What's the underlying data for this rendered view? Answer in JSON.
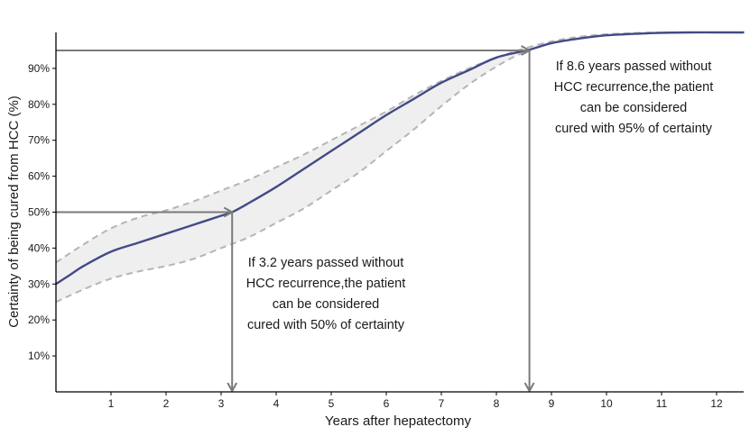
{
  "chart_data": {
    "type": "line",
    "xlabel": "Years after hepatectomy",
    "ylabel": "Certainty of being cured from HCC (%)",
    "xlim": [
      0,
      12.5
    ],
    "ylim": [
      0,
      100
    ],
    "x_ticks": [
      1,
      2,
      3,
      4,
      5,
      6,
      7,
      8,
      9,
      10,
      11,
      12
    ],
    "y_ticks": [
      10,
      20,
      30,
      40,
      50,
      60,
      70,
      80,
      90
    ],
    "y_tick_labels": [
      "10%",
      "20%",
      "30%",
      "40%",
      "50%",
      "60%",
      "70%",
      "80%",
      "90%"
    ],
    "grid": false,
    "series": [
      {
        "role": "estimate",
        "line_style": "solid",
        "x": [
          0,
          0.25,
          0.5,
          1,
          1.5,
          2,
          2.5,
          3,
          3.2,
          3.5,
          4,
          4.5,
          5,
          5.5,
          6,
          6.5,
          7,
          7.5,
          8,
          8.6,
          9,
          9.5,
          10,
          10.5,
          11,
          11.5,
          12,
          12.5
        ],
        "y": [
          30,
          32.5,
          35,
          39,
          41.5,
          44,
          46.5,
          49,
          50,
          52.5,
          57,
          62,
          67,
          72,
          77,
          81.5,
          86,
          89.5,
          93,
          95.2,
          97,
          98.3,
          99.2,
          99.6,
          99.9,
          100,
          100,
          100
        ]
      },
      {
        "role": "upper-bound",
        "line_style": "dashed",
        "x": [
          0,
          0.5,
          1,
          1.5,
          2,
          2.5,
          3,
          3.5,
          4,
          4.5,
          5,
          5.5,
          6,
          6.5,
          7,
          7.5,
          8,
          8.5,
          9,
          9.5,
          10,
          10.5,
          11,
          11.5,
          12,
          12.5
        ],
        "y": [
          36,
          41,
          45.5,
          48.5,
          50.5,
          53,
          56,
          59,
          62.5,
          66,
          70,
          74,
          78,
          82.5,
          86.5,
          90,
          93,
          95.5,
          97.5,
          98.8,
          99.5,
          99.8,
          100,
          100,
          100,
          100
        ]
      },
      {
        "role": "lower-bound",
        "line_style": "dashed",
        "x": [
          0,
          0.5,
          1,
          1.5,
          2,
          2.5,
          3,
          3.5,
          4,
          4.5,
          5,
          5.5,
          6,
          6.5,
          7,
          7.5,
          8,
          8.5,
          9,
          9.5,
          10,
          10.5,
          11,
          11.5,
          12,
          12.5
        ],
        "y": [
          25,
          28.5,
          31.5,
          33.5,
          35,
          37,
          40,
          43,
          47,
          51,
          56,
          61,
          67,
          73,
          79.5,
          85.5,
          90.5,
          94.5,
          97,
          98.5,
          99.4,
          99.8,
          100,
          100,
          100,
          100
        ]
      }
    ],
    "annotations": [
      {
        "x": 3.2,
        "y": 50,
        "lines": [
          "If 3.2 years passed without",
          "HCC recurrence,the patient",
          "can be considered",
          "cured with 50% of certainty"
        ]
      },
      {
        "x": 8.6,
        "y": 95,
        "lines": [
          "If 8.6 years passed without",
          "HCC recurrence,the patient",
          "can be considered",
          "cured with 95% of certainty"
        ]
      }
    ],
    "colors": {
      "estimate_line": "#434a86",
      "bound_lines": "#b5b5b5",
      "band_fill": "#efefef",
      "guide_lines": "#7a7a7a",
      "axis": "#000000"
    }
  }
}
